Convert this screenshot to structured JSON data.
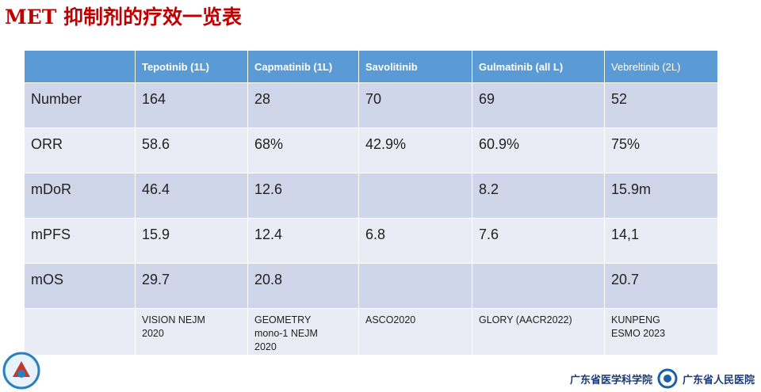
{
  "slide": {
    "title": "MET 抑制剂的疗效一览表"
  },
  "table": {
    "header": [
      null,
      "Tepotinib (1L)",
      "Capmatinib (1L)",
      "Savolitinib",
      "Gulmatinib (all L)",
      "Vebreltinib (2L)"
    ],
    "rows": [
      [
        "Number",
        "164",
        "28",
        "70",
        "69",
        "52"
      ],
      [
        "ORR",
        "58.6",
        "68%",
        "42.9%",
        "60.9%",
        "75%"
      ],
      [
        "mDoR",
        "46.4",
        "12.6",
        null,
        "8.2",
        "15.9m"
      ],
      [
        "mPFS",
        "15.9",
        "12.4",
        "6.8",
        "7.6",
        "14,1"
      ],
      [
        "mOS",
        "29.7",
        "20.8",
        null,
        null,
        "20.7"
      ],
      [
        null,
        "VISION NEJM\n2020",
        "GEOMETRY\nmono-1 NEJM\n2020",
        "ASCO2020",
        "GLORY (AACR2022)",
        "KUNPENG\nESMO 2023"
      ]
    ]
  },
  "footer": {
    "institutions": [
      "广东省医学科学院",
      "广东省人民医院"
    ]
  }
}
